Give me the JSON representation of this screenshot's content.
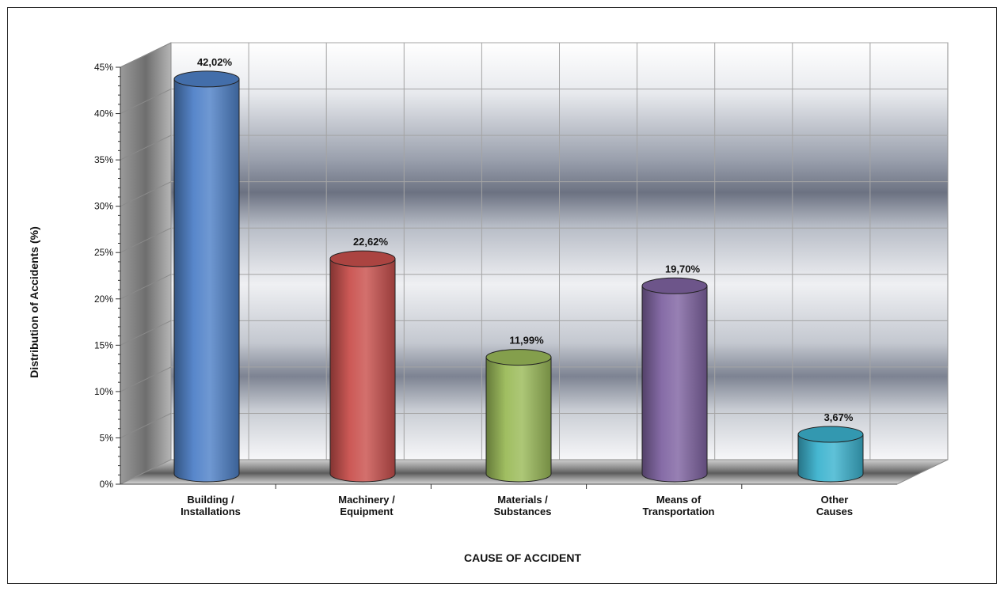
{
  "chart_data": {
    "type": "bar",
    "style": "3d-cylinder",
    "title": "",
    "xlabel": "CAUSE OF ACCIDENT",
    "ylabel": "Distribution of Accidents (%)",
    "categories": [
      [
        "Building /",
        "Installations"
      ],
      [
        "Machinery /",
        "Equipment"
      ],
      [
        "Materials /",
        "Substances"
      ],
      [
        "Means of",
        "Transportation"
      ],
      [
        "Other",
        "Causes"
      ]
    ],
    "values": [
      42.02,
      22.62,
      11.99,
      19.7,
      3.67
    ],
    "value_labels": [
      "42,02%",
      "22,62%",
      "11,99%",
      "19,70%",
      "3,67%"
    ],
    "colors": [
      "#4f81c8",
      "#c9504d",
      "#9bbb59",
      "#8064a2",
      "#3cb3cf"
    ],
    "ylim": [
      0,
      45
    ],
    "yticks": [
      0,
      5,
      10,
      15,
      20,
      25,
      30,
      35,
      40,
      45
    ],
    "ytick_labels": [
      "0%",
      "5%",
      "10%",
      "15%",
      "20%",
      "25%",
      "30%",
      "35%",
      "40%",
      "45%"
    ],
    "grid": true,
    "legend": "none"
  }
}
